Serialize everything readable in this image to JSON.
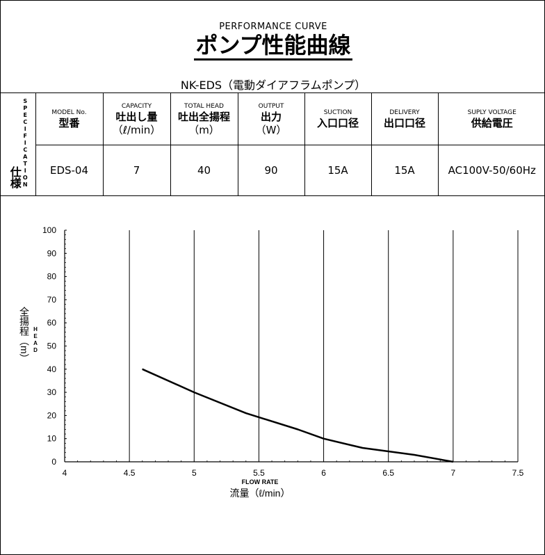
{
  "header": {
    "subtitle": "PERFORMANCE CURVE",
    "title": "ポンプ性能曲線",
    "model_line": "NK-EDS（電動ダイアフラムポンプ）"
  },
  "spec_table": {
    "side_label_jp": "仕様",
    "side_label_en": "SPECIFICATION",
    "columns": [
      {
        "en": "MODEL No.",
        "jp": "型番",
        "unit": ""
      },
      {
        "en": "CAPACITY",
        "jp": "吐出し量",
        "unit": "（ℓ/min）"
      },
      {
        "en": "TOTAL HEAD",
        "jp": "吐出全揚程",
        "unit": "（m）"
      },
      {
        "en": "OUTPUT",
        "jp": "出力",
        "unit": "（W）"
      },
      {
        "en": "SUCTION",
        "jp": "入口口径",
        "unit": ""
      },
      {
        "en": "DELIVERY",
        "jp": "出口口径",
        "unit": ""
      },
      {
        "en": "SUPLY VOLTAGE",
        "jp": "供給電圧",
        "unit": ""
      }
    ],
    "values": [
      "EDS-04",
      "7",
      "40",
      "90",
      "15A",
      "15A",
      "AC100V-50/60Hz"
    ]
  },
  "chart_data": {
    "type": "line",
    "x": [
      4.6,
      5.0,
      5.4,
      5.8,
      6.0,
      6.3,
      6.7,
      7.0
    ],
    "series": [
      {
        "values": [
          40,
          30,
          21,
          14,
          10,
          6,
          3,
          0
        ]
      }
    ],
    "xlabel_en": "FLOW RATE",
    "xlabel_jp": "流量（ℓ/min）",
    "ylabel_en": "HEAD",
    "ylabel_jp": "全揚程（m）",
    "xlim": [
      4,
      7.5
    ],
    "ylim": [
      0,
      100
    ],
    "xticks": [
      "4",
      "4.5",
      "5",
      "5.5",
      "6",
      "6.5",
      "7",
      "7.5"
    ],
    "yticks": [
      "0",
      "10",
      "20",
      "30",
      "40",
      "50",
      "60",
      "70",
      "80",
      "90",
      "100"
    ],
    "grid": "vertical",
    "line_color": "#000000"
  }
}
